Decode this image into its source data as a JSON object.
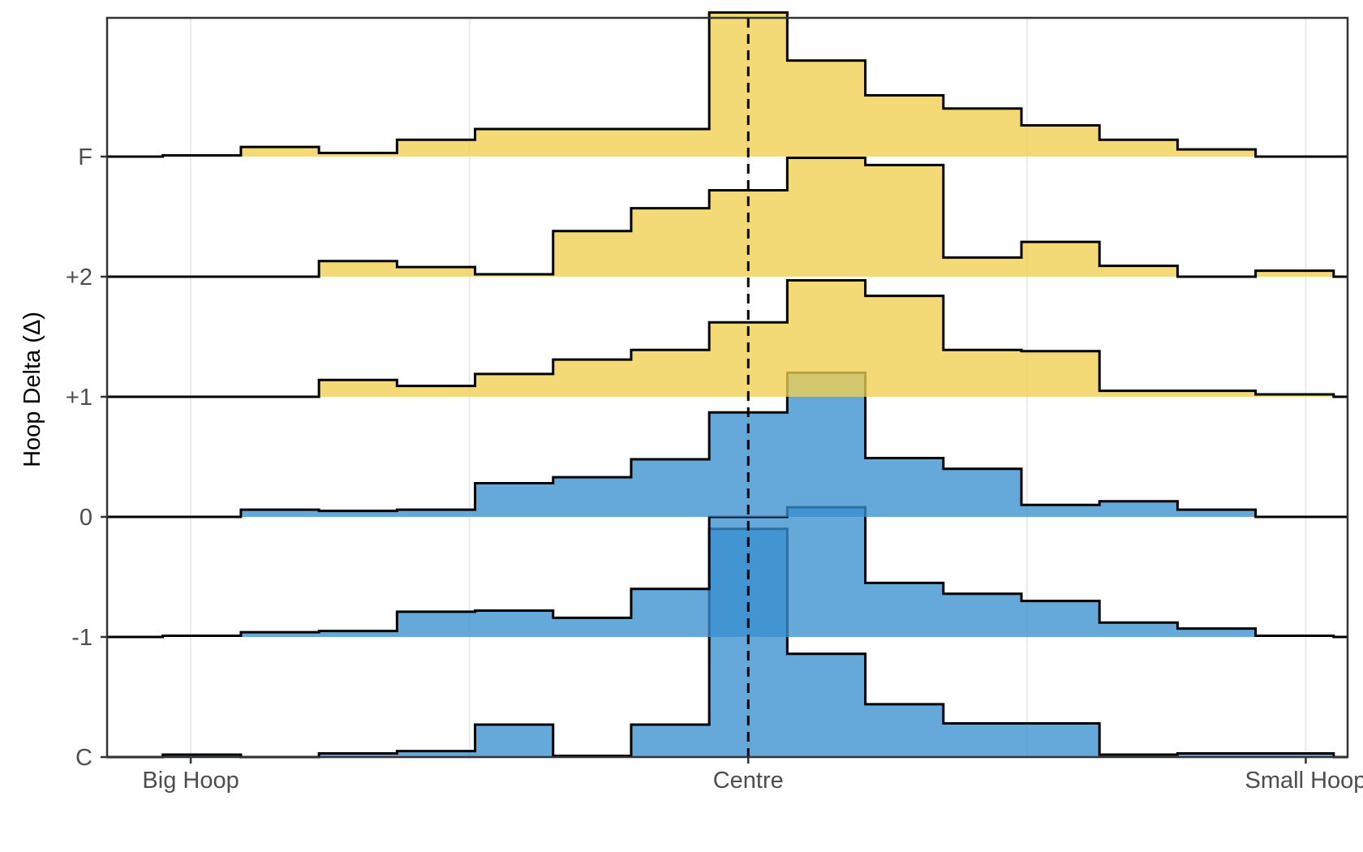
{
  "chart_data": {
    "type": "ridgeline-step-histogram",
    "title": "",
    "xlabel": "",
    "ylabel": "Hoop Delta (Δ)",
    "xlim": [
      -0.6,
      8.3
    ],
    "x_ticks": [
      {
        "value": 0,
        "label": "Big Hoop"
      },
      {
        "value": 4,
        "label": "Centre"
      },
      {
        "value": 8,
        "label": "Small Hoop"
      }
    ],
    "reference_line": {
      "x": 4,
      "style": "dashed"
    },
    "grid": true,
    "bin_edges": [
      -0.2,
      0.36,
      0.92,
      1.48,
      2.04,
      2.6,
      3.16,
      3.72,
      4.28,
      4.84,
      5.4,
      5.96,
      6.52,
      7.08,
      7.64,
      8.2
    ],
    "rows": [
      {
        "label": "C",
        "color": "#3a8fcf",
        "values": [
          0.02,
          0,
          0.03,
          0.05,
          0.27,
          0.01,
          0.27,
          1.9,
          0.86,
          0.44,
          0.28,
          0.28,
          0.02,
          0.03,
          0.03
        ]
      },
      {
        "label": "-1",
        "color": "#3a8fcf",
        "values": [
          0.01,
          0.04,
          0.05,
          0.21,
          0.22,
          0.16,
          0.4,
          1.0,
          1.08,
          0.45,
          0.36,
          0.3,
          0.12,
          0.07,
          0.01
        ]
      },
      {
        "label": "0",
        "color": "#3a8fcf",
        "values": [
          0,
          0.06,
          0.05,
          0.06,
          0.28,
          0.33,
          0.48,
          0.87,
          1.2,
          0.49,
          0.4,
          0.1,
          0.13,
          0.06,
          0
        ]
      },
      {
        "label": "+1",
        "color": "#f1cf4f",
        "values": [
          0,
          0,
          0.14,
          0.09,
          0.19,
          0.31,
          0.39,
          0.62,
          0.97,
          0.84,
          0.39,
          0.38,
          0.05,
          0.05,
          0.02
        ]
      },
      {
        "label": "+2",
        "color": "#f1cf4f",
        "values": [
          0,
          0,
          0.13,
          0.08,
          0.02,
          0.38,
          0.57,
          0.72,
          0.99,
          0.93,
          0.16,
          0.29,
          0.09,
          0,
          0.05
        ]
      },
      {
        "label": "F",
        "color": "#f1cf4f",
        "values": [
          0.01,
          0.08,
          0.03,
          0.14,
          0.23,
          0.23,
          0.23,
          1.2,
          0.8,
          0.51,
          0.4,
          0.26,
          0.14,
          0.06,
          0
        ]
      }
    ]
  }
}
